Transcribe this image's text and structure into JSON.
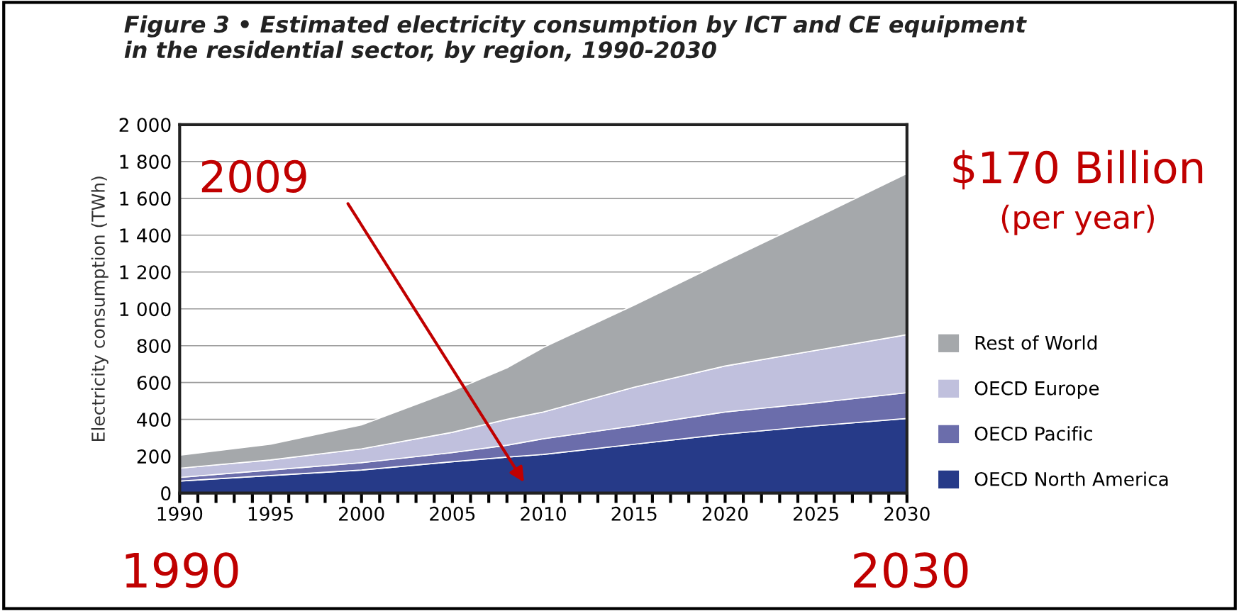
{
  "chart_data": {
    "type": "area",
    "stacked": true,
    "title": "Figure 3 • Estimated electricity consumption by ICT and CE equipment\nin the residential sector, by region, 1990-2030",
    "ylabel": "Electricity consumption (TWh)",
    "x": [
      1990,
      1995,
      2000,
      2005,
      2008,
      2010,
      2015,
      2020,
      2025,
      2030
    ],
    "series": [
      {
        "name": "OECD North America",
        "color": "#263a88",
        "values": [
          65,
          95,
          125,
          170,
          195,
          210,
          265,
          320,
          365,
          405
        ]
      },
      {
        "name": "OECD Pacific",
        "color": "#6b6dab",
        "values": [
          20,
          30,
          40,
          50,
          65,
          85,
          100,
          120,
          125,
          140
        ]
      },
      {
        "name": "OECD Europe",
        "color": "#c0c0dd",
        "values": [
          50,
          55,
          75,
          110,
          140,
          145,
          210,
          250,
          285,
          315
        ]
      },
      {
        "name": "Rest of World",
        "color": "#a5a8ab",
        "values": [
          70,
          85,
          130,
          225,
          280,
          350,
          445,
          570,
          720,
          875
        ]
      }
    ],
    "xlim": [
      1990,
      2030
    ],
    "xticks": [
      1990,
      {
        "value": 1991,
        "label": null
      },
      {
        "value": 1992,
        "label": null
      },
      {
        "value": 1993,
        "label": null
      },
      {
        "value": 1994,
        "label": null
      },
      1995,
      {
        "value": 1996,
        "label": null
      },
      {
        "value": 1997,
        "label": null
      },
      {
        "value": 1998,
        "label": null
      },
      {
        "value": 1999,
        "label": null
      },
      2000,
      {
        "value": 2001,
        "label": null
      },
      {
        "value": 2002,
        "label": null
      },
      {
        "value": 2003,
        "label": null
      },
      {
        "value": 2004,
        "label": null
      },
      2005,
      {
        "value": 2006,
        "label": null
      },
      {
        "value": 2007,
        "label": null
      },
      {
        "value": 2008,
        "label": null
      },
      {
        "value": 2009,
        "label": null
      },
      2010,
      {
        "value": 2011,
        "label": null
      },
      {
        "value": 2012,
        "label": null
      },
      {
        "value": 2013,
        "label": null
      },
      {
        "value": 2014,
        "label": null
      },
      2015,
      {
        "value": 2016,
        "label": null
      },
      {
        "value": 2017,
        "label": null
      },
      {
        "value": 2018,
        "label": null
      },
      {
        "value": 2019,
        "label": null
      },
      2020,
      {
        "value": 2021,
        "label": null
      },
      {
        "value": 2022,
        "label": null
      },
      {
        "value": 2023,
        "label": null
      },
      {
        "value": 2024,
        "label": null
      },
      2025,
      {
        "value": 2026,
        "label": null
      },
      {
        "value": 2027,
        "label": null
      },
      {
        "value": 2028,
        "label": null
      },
      {
        "value": 2029,
        "label": null
      },
      2030
    ],
    "ylim": [
      0,
      2000
    ],
    "yticks": [
      0,
      200,
      400,
      600,
      800,
      {
        "value": 1000,
        "label": "1 000"
      },
      {
        "value": 1200,
        "label": "1 200"
      },
      {
        "value": 1400,
        "label": "1 400"
      },
      {
        "value": 1600,
        "label": "1 600"
      },
      {
        "value": 1800,
        "label": "1 800"
      },
      {
        "value": 2000,
        "label": "2 000"
      }
    ],
    "grid": "y",
    "legend": "right",
    "annotations": [
      "2009",
      "$170 Billion",
      "(per year)",
      "1990",
      "2030"
    ]
  }
}
